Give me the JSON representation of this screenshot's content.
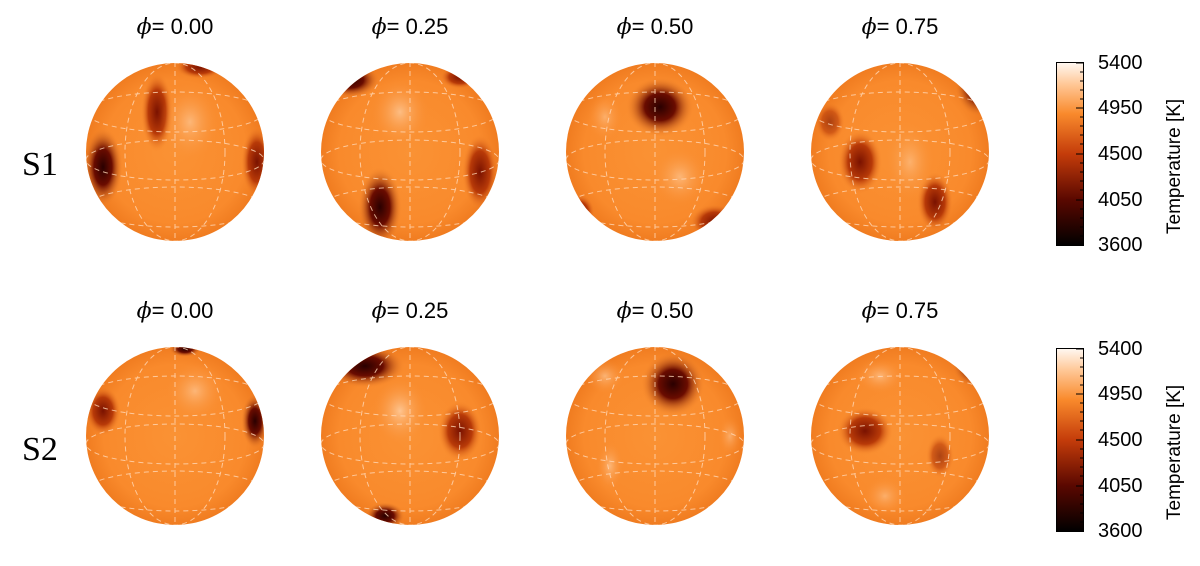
{
  "rows": [
    {
      "label": "S1",
      "phases": [
        "0.00",
        "0.25",
        "0.50",
        "0.75"
      ]
    },
    {
      "label": "S2",
      "phases": [
        "0.00",
        "0.25",
        "0.50",
        "0.75"
      ]
    }
  ],
  "phase_prefix": "=",
  "phase_symbol": "ϕ",
  "colorbar": {
    "label": "Temperature [K]",
    "ticks": [
      "5400",
      "4950",
      "4500",
      "4050",
      "3600"
    ],
    "min": 3600,
    "max": 5400
  },
  "colors": {
    "base_orange": "#f9892c",
    "hot": "#ffe2c4",
    "cool_dark": "#2a0000",
    "grid": "#ffd6b0"
  }
}
